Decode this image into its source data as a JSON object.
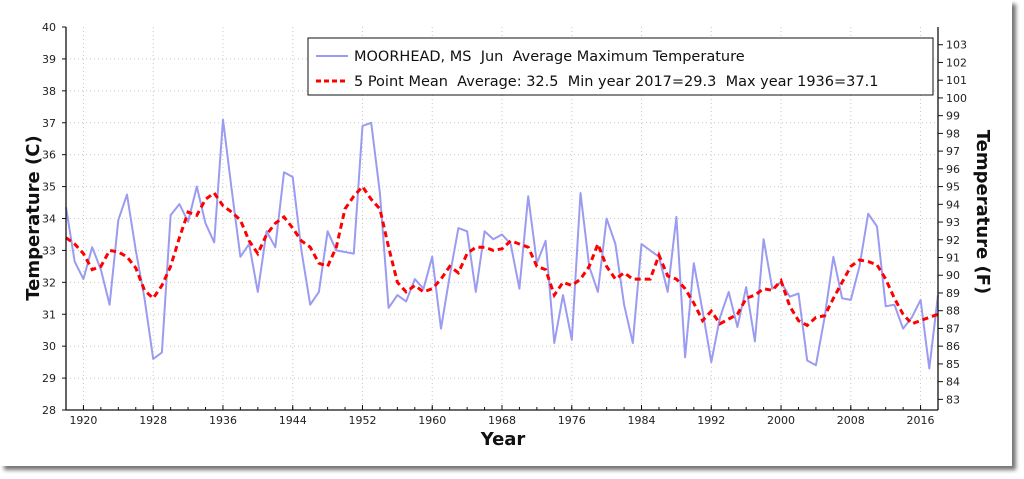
{
  "chart_data": {
    "type": "line",
    "title": "",
    "xlabel": "Year",
    "ylabel": "Temperature (C)",
    "ylabel_right": "Temperature (F)",
    "xlim": [
      1918,
      2018
    ],
    "ylim": [
      28,
      40
    ],
    "ylim_right": [
      82.4,
      104
    ],
    "grid": true,
    "legend_position": "top-right",
    "x_ticks": [
      "1920",
      "1928",
      "1936",
      "1944",
      "1952",
      "1960",
      "1968",
      "1976",
      "1984",
      "1992",
      "2000",
      "2008",
      "2016"
    ],
    "y_ticks": [
      "28",
      "29",
      "30",
      "31",
      "32",
      "33",
      "34",
      "35",
      "36",
      "37",
      "38",
      "39",
      "40"
    ],
    "y_ticks_right": [
      "83",
      "84",
      "85",
      "86",
      "87",
      "88",
      "89",
      "90",
      "91",
      "92",
      "93",
      "94",
      "95",
      "96",
      "97",
      "98",
      "99",
      "100",
      "101",
      "102",
      "103"
    ],
    "colors": {
      "series": "#9b9bf2",
      "mean": "#ff0000"
    },
    "x": [
      1918,
      1919,
      1920,
      1921,
      1922,
      1923,
      1924,
      1925,
      1926,
      1927,
      1928,
      1929,
      1930,
      1931,
      1932,
      1933,
      1934,
      1935,
      1936,
      1937,
      1938,
      1939,
      1940,
      1941,
      1942,
      1943,
      1944,
      1945,
      1946,
      1947,
      1948,
      1949,
      1950,
      1951,
      1952,
      1953,
      1954,
      1955,
      1956,
      1957,
      1958,
      1959,
      1960,
      1961,
      1962,
      1963,
      1964,
      1965,
      1966,
      1967,
      1968,
      1969,
      1970,
      1971,
      1972,
      1973,
      1974,
      1975,
      1976,
      1977,
      1978,
      1979,
      1980,
      1981,
      1982,
      1983,
      1984,
      1985,
      1986,
      1987,
      1988,
      1989,
      1990,
      1991,
      1992,
      1993,
      1994,
      1995,
      1996,
      1997,
      1998,
      1999,
      2000,
      2001,
      2002,
      2003,
      2004,
      2005,
      2006,
      2007,
      2008,
      2009,
      2010,
      2011,
      2012,
      2013,
      2014,
      2015,
      2016,
      2017,
      2018
    ],
    "series": [
      {
        "name": "MOORHEAD, MS  Jun  Average Maximum Temperature",
        "style": "solid",
        "values": [
          34.35,
          32.65,
          32.1,
          33.1,
          32.4,
          31.3,
          33.95,
          34.75,
          33.0,
          31.5,
          29.6,
          29.8,
          34.1,
          34.45,
          33.9,
          35.0,
          33.85,
          33.25,
          37.1,
          34.9,
          32.8,
          33.2,
          31.7,
          33.6,
          33.1,
          35.45,
          35.3,
          33.0,
          31.3,
          31.7,
          33.6,
          33.0,
          32.95,
          32.9,
          36.9,
          37.0,
          34.8,
          31.2,
          31.6,
          31.4,
          32.1,
          31.8,
          32.8,
          30.55,
          32.2,
          33.7,
          33.6,
          31.7,
          33.6,
          33.35,
          33.5,
          33.2,
          31.8,
          34.7,
          32.6,
          33.3,
          30.1,
          31.6,
          30.2,
          34.8,
          32.5,
          31.7,
          34.0,
          33.2,
          31.3,
          30.1,
          33.2,
          33.0,
          32.8,
          31.7,
          34.05,
          29.65,
          32.6,
          31.1,
          29.5,
          30.9,
          31.7,
          30.6,
          31.85,
          30.15,
          33.35,
          31.8,
          32.0,
          31.55,
          31.65,
          29.55,
          29.4,
          30.9,
          32.8,
          31.5,
          31.45,
          32.5,
          34.15,
          33.75,
          31.25,
          31.3,
          30.55,
          30.9,
          31.45,
          29.3,
          31.6
        ]
      },
      {
        "name": "5 Point Mean  Average: 32.5  Min year 2017=29.3  Max year 1936=37.1",
        "style": "dashed",
        "values": [
          33.4,
          33.2,
          32.9,
          32.4,
          32.5,
          33.0,
          32.95,
          32.8,
          32.45,
          31.75,
          31.5,
          31.9,
          32.5,
          33.4,
          34.2,
          34.1,
          34.6,
          34.8,
          34.4,
          34.2,
          33.95,
          33.3,
          32.9,
          33.5,
          33.85,
          34.05,
          33.7,
          33.3,
          33.1,
          32.6,
          32.5,
          33.1,
          34.3,
          34.7,
          35.0,
          34.6,
          34.3,
          33.1,
          32.0,
          31.7,
          31.9,
          31.7,
          31.8,
          32.1,
          32.5,
          32.3,
          32.9,
          33.1,
          33.1,
          33.0,
          33.05,
          33.3,
          33.2,
          33.1,
          32.5,
          32.4,
          31.6,
          32.0,
          31.9,
          32.1,
          32.5,
          33.2,
          32.5,
          32.1,
          32.3,
          32.1,
          32.1,
          32.1,
          32.85,
          32.2,
          32.1,
          31.8,
          31.35,
          30.8,
          31.1,
          30.7,
          30.85,
          31.0,
          31.5,
          31.6,
          31.8,
          31.75,
          32.05,
          31.25,
          30.8,
          30.65,
          30.9,
          30.95,
          31.5,
          32.0,
          32.5,
          32.7,
          32.65,
          32.55,
          32.1,
          31.5,
          31.0,
          30.7,
          30.8,
          30.9,
          31.0
        ]
      }
    ]
  }
}
